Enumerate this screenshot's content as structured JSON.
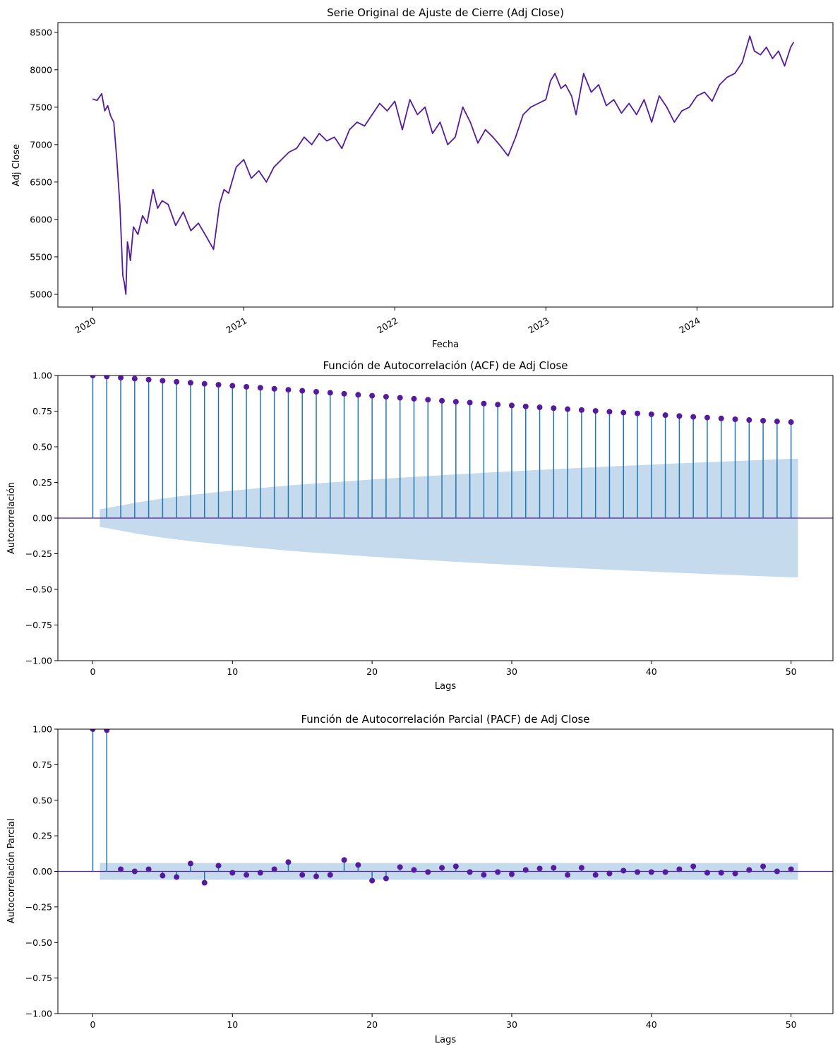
{
  "colors": {
    "line": "#551a9e",
    "marker": "#551a9e",
    "stem": "#1f77b4",
    "confidence_band": "#c5dbed",
    "zero_line": "#551a9e"
  },
  "chart_data": [
    {
      "type": "line",
      "title": "Serie Original de Ajuste de Cierre (Adj Close)",
      "xlabel": "Fecha",
      "ylabel": "Adj Close",
      "x_ticks": [
        "2020",
        "2021",
        "2022",
        "2023",
        "2024"
      ],
      "x_tick_values": [
        2020.0,
        2021.0,
        2022.0,
        2023.0,
        2024.0
      ],
      "xlim": [
        2019.77,
        2024.9
      ],
      "y_ticks": [
        "5000",
        "5500",
        "6000",
        "6500",
        "7000",
        "7500",
        "8000",
        "8500"
      ],
      "y_tick_values": [
        5000,
        5500,
        6000,
        6500,
        7000,
        7500,
        8000,
        8500
      ],
      "ylim": [
        4830,
        8630
      ],
      "series": [
        {
          "x": [
            2020.0,
            2020.03,
            2020.06,
            2020.08,
            2020.1,
            2020.12,
            2020.14,
            2020.16,
            2020.18,
            2020.2,
            2020.21,
            2020.22,
            2020.23,
            2020.24,
            2020.25,
            2020.27,
            2020.3,
            2020.33,
            2020.36,
            2020.4,
            2020.43,
            2020.46,
            2020.5,
            2020.55,
            2020.6,
            2020.65,
            2020.7,
            2020.75,
            2020.8,
            2020.84,
            2020.87,
            2020.9,
            2020.95,
            2021.0,
            2021.05,
            2021.1,
            2021.15,
            2021.2,
            2021.25,
            2021.3,
            2021.35,
            2021.4,
            2021.45,
            2021.5,
            2021.55,
            2021.6,
            2021.65,
            2021.7,
            2021.75,
            2021.8,
            2021.85,
            2021.9,
            2021.95,
            2022.0,
            2022.05,
            2022.1,
            2022.15,
            2022.2,
            2022.25,
            2022.3,
            2022.35,
            2022.4,
            2022.45,
            2022.5,
            2022.55,
            2022.6,
            2022.65,
            2022.7,
            2022.75,
            2022.8,
            2022.85,
            2022.9,
            2022.95,
            2023.0,
            2023.03,
            2023.06,
            2023.1,
            2023.13,
            2023.17,
            2023.2,
            2023.25,
            2023.3,
            2023.35,
            2023.4,
            2023.45,
            2023.5,
            2023.55,
            2023.6,
            2023.65,
            2023.7,
            2023.75,
            2023.8,
            2023.85,
            2023.9,
            2023.95,
            2024.0,
            2024.05,
            2024.1,
            2024.15,
            2024.2,
            2024.25,
            2024.3,
            2024.35,
            2024.38,
            2024.42,
            2024.46,
            2024.5,
            2024.54,
            2024.58,
            2024.62,
            2024.64
          ],
          "y": [
            7610,
            7590,
            7680,
            7450,
            7520,
            7380,
            7300,
            6800,
            6200,
            5250,
            5150,
            5000,
            5700,
            5600,
            5450,
            5900,
            5800,
            6050,
            5950,
            6400,
            6150,
            6250,
            6200,
            5920,
            6100,
            5850,
            5950,
            5780,
            5600,
            6200,
            6400,
            6350,
            6700,
            6800,
            6550,
            6650,
            6500,
            6700,
            6800,
            6900,
            6950,
            7100,
            7000,
            7150,
            7050,
            7100,
            6950,
            7200,
            7300,
            7250,
            7400,
            7550,
            7450,
            7580,
            7200,
            7600,
            7400,
            7500,
            7150,
            7300,
            7000,
            7100,
            7500,
            7300,
            7020,
            7200,
            7100,
            6980,
            6850,
            7100,
            7400,
            7500,
            7550,
            7600,
            7850,
            7950,
            7750,
            7800,
            7650,
            7400,
            7950,
            7700,
            7800,
            7520,
            7600,
            7420,
            7550,
            7400,
            7600,
            7300,
            7650,
            7500,
            7300,
            7450,
            7500,
            7650,
            7700,
            7580,
            7800,
            7900,
            7950,
            8100,
            8450,
            8250,
            8200,
            8300,
            8150,
            8250,
            8050,
            8300,
            8370
          ]
        }
      ]
    },
    {
      "type": "stem",
      "title": "Función de Autocorrelación (ACF) de Adj Close",
      "xlabel": "Lags",
      "ylabel": "Autocorrelación",
      "x_ticks": [
        "0",
        "10",
        "20",
        "30",
        "40",
        "50"
      ],
      "x_tick_values": [
        0,
        10,
        20,
        30,
        40,
        50
      ],
      "xlim": [
        -2.5,
        53
      ],
      "y_ticks": [
        "−1.00",
        "−0.75",
        "−0.50",
        "−0.25",
        "0.00",
        "0.25",
        "0.50",
        "0.75",
        "1.00"
      ],
      "y_tick_values": [
        -1.0,
        -0.75,
        -0.5,
        -0.25,
        0.0,
        0.25,
        0.5,
        0.75,
        1.0
      ],
      "ylim": [
        -1.0,
        1.0
      ],
      "lags": [
        0,
        1,
        2,
        3,
        4,
        5,
        6,
        7,
        8,
        9,
        10,
        11,
        12,
        13,
        14,
        15,
        16,
        17,
        18,
        19,
        20,
        21,
        22,
        23,
        24,
        25,
        26,
        27,
        28,
        29,
        30,
        31,
        32,
        33,
        34,
        35,
        36,
        37,
        38,
        39,
        40,
        41,
        42,
        43,
        44,
        45,
        46,
        47,
        48,
        49,
        50
      ],
      "values": [
        1.0,
        0.993,
        0.985,
        0.978,
        0.971,
        0.963,
        0.956,
        0.949,
        0.942,
        0.935,
        0.928,
        0.921,
        0.914,
        0.907,
        0.9,
        0.893,
        0.886,
        0.879,
        0.872,
        0.865,
        0.858,
        0.851,
        0.844,
        0.837,
        0.83,
        0.823,
        0.816,
        0.81,
        0.803,
        0.796,
        0.79,
        0.783,
        0.777,
        0.771,
        0.764,
        0.758,
        0.752,
        0.746,
        0.74,
        0.734,
        0.728,
        0.722,
        0.716,
        0.71,
        0.705,
        0.699,
        0.693,
        0.688,
        0.683,
        0.678,
        0.673
      ],
      "confidence_upper": [
        0.0,
        0.062,
        0.088,
        0.107,
        0.123,
        0.137,
        0.15,
        0.162,
        0.173,
        0.183,
        0.193,
        0.202,
        0.211,
        0.22,
        0.228,
        0.236,
        0.243,
        0.25,
        0.257,
        0.264,
        0.271,
        0.277,
        0.283,
        0.289,
        0.295,
        0.301,
        0.307,
        0.312,
        0.318,
        0.323,
        0.328,
        0.333,
        0.338,
        0.343,
        0.348,
        0.353,
        0.357,
        0.362,
        0.367,
        0.371,
        0.375,
        0.38,
        0.384,
        0.388,
        0.392,
        0.396,
        0.4,
        0.404,
        0.408,
        0.412,
        0.416
      ]
    },
    {
      "type": "stem",
      "title": "Función de Autocorrelación Parcial (PACF) de Adj Close",
      "xlabel": "Lags",
      "ylabel": "Autocorrelación Parcial",
      "x_ticks": [
        "0",
        "10",
        "20",
        "30",
        "40",
        "50"
      ],
      "x_tick_values": [
        0,
        10,
        20,
        30,
        40,
        50
      ],
      "xlim": [
        -2.5,
        53
      ],
      "y_ticks": [
        "−1.00",
        "−0.75",
        "−0.50",
        "−0.25",
        "0.00",
        "0.25",
        "0.50",
        "0.75",
        "1.00"
      ],
      "y_tick_values": [
        -1.0,
        -0.75,
        -0.5,
        -0.25,
        0.0,
        0.25,
        0.5,
        0.75,
        1.0
      ],
      "ylim": [
        -1.0,
        1.0
      ],
      "lags": [
        0,
        1,
        2,
        3,
        4,
        5,
        6,
        7,
        8,
        9,
        10,
        11,
        12,
        13,
        14,
        15,
        16,
        17,
        18,
        19,
        20,
        21,
        22,
        23,
        24,
        25,
        26,
        27,
        28,
        29,
        30,
        31,
        32,
        33,
        34,
        35,
        36,
        37,
        38,
        39,
        40,
        41,
        42,
        43,
        44,
        45,
        46,
        47,
        48,
        49,
        50
      ],
      "values": [
        1.0,
        0.993,
        0.015,
        0.0,
        0.015,
        -0.03,
        -0.04,
        0.055,
        -0.08,
        0.04,
        -0.01,
        -0.025,
        -0.01,
        0.015,
        0.065,
        -0.025,
        -0.035,
        -0.025,
        0.08,
        0.045,
        -0.065,
        -0.05,
        0.03,
        0.01,
        -0.005,
        0.025,
        0.035,
        -0.005,
        -0.025,
        -0.005,
        -0.02,
        0.01,
        0.02,
        0.025,
        -0.025,
        0.025,
        -0.025,
        -0.015,
        0.005,
        -0.005,
        -0.005,
        -0.005,
        0.015,
        0.035,
        -0.01,
        -0.01,
        -0.015,
        0.01,
        0.035,
        0.0,
        0.015
      ],
      "confidence_upper": 0.059
    }
  ]
}
